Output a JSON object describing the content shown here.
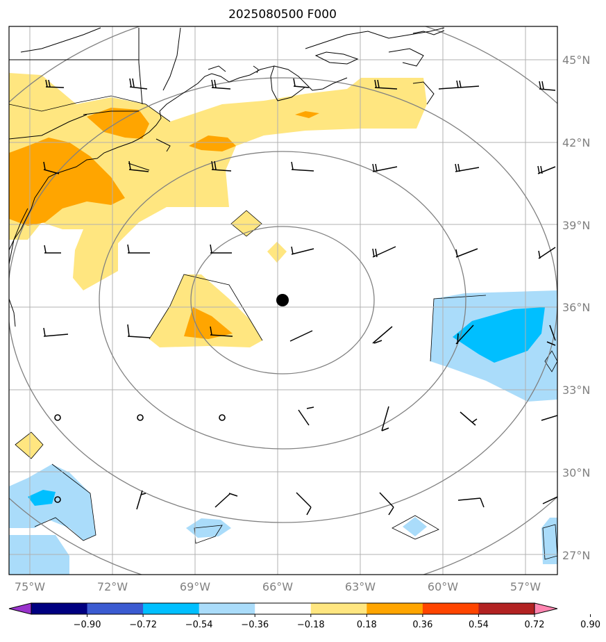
{
  "title": "2025080500 F000",
  "map": {
    "lon_range": [
      -76,
      -56
    ],
    "lat_range": [
      26.5,
      46.2
    ],
    "lon_ticks": [
      -75,
      -72,
      -69,
      -66,
      -63,
      -60,
      -57
    ],
    "lon_labels": [
      "75°W",
      "72°W",
      "69°W",
      "66°W",
      "63°W",
      "60°W",
      "57°W"
    ],
    "lat_ticks": [
      27,
      30,
      33,
      36,
      39,
      42,
      45
    ],
    "lat_labels": [
      "27°N",
      "30°N",
      "33°N",
      "36°N",
      "39°N",
      "42°N",
      "45°N"
    ],
    "gridlines": true,
    "center_marker": {
      "lon": -65.8,
      "lat": 36.2
    },
    "range_rings": "concentric grey circles around center"
  },
  "colorbar": {
    "levels": [
      "−0.90",
      "−0.72",
      "−0.54",
      "−0.36",
      "−0.18",
      "0.18",
      "0.36",
      "0.54",
      "0.72",
      "0.90"
    ],
    "colors": [
      "#9933cc",
      "#000080",
      "#3b5bd1",
      "#00bfff",
      "#aadcfa",
      "#ffffff",
      "#ffe680",
      "#ffa500",
      "#ff4500",
      "#b22222",
      "#ff85b0"
    ],
    "extend": "both"
  },
  "colors": {
    "grid": "#b0b0b0",
    "rings": "#808080",
    "coast": "#000000",
    "light_yellow": "#ffe680",
    "orange": "#ffa500",
    "light_blue": "#aadcfa",
    "blue": "#00bfff"
  }
}
